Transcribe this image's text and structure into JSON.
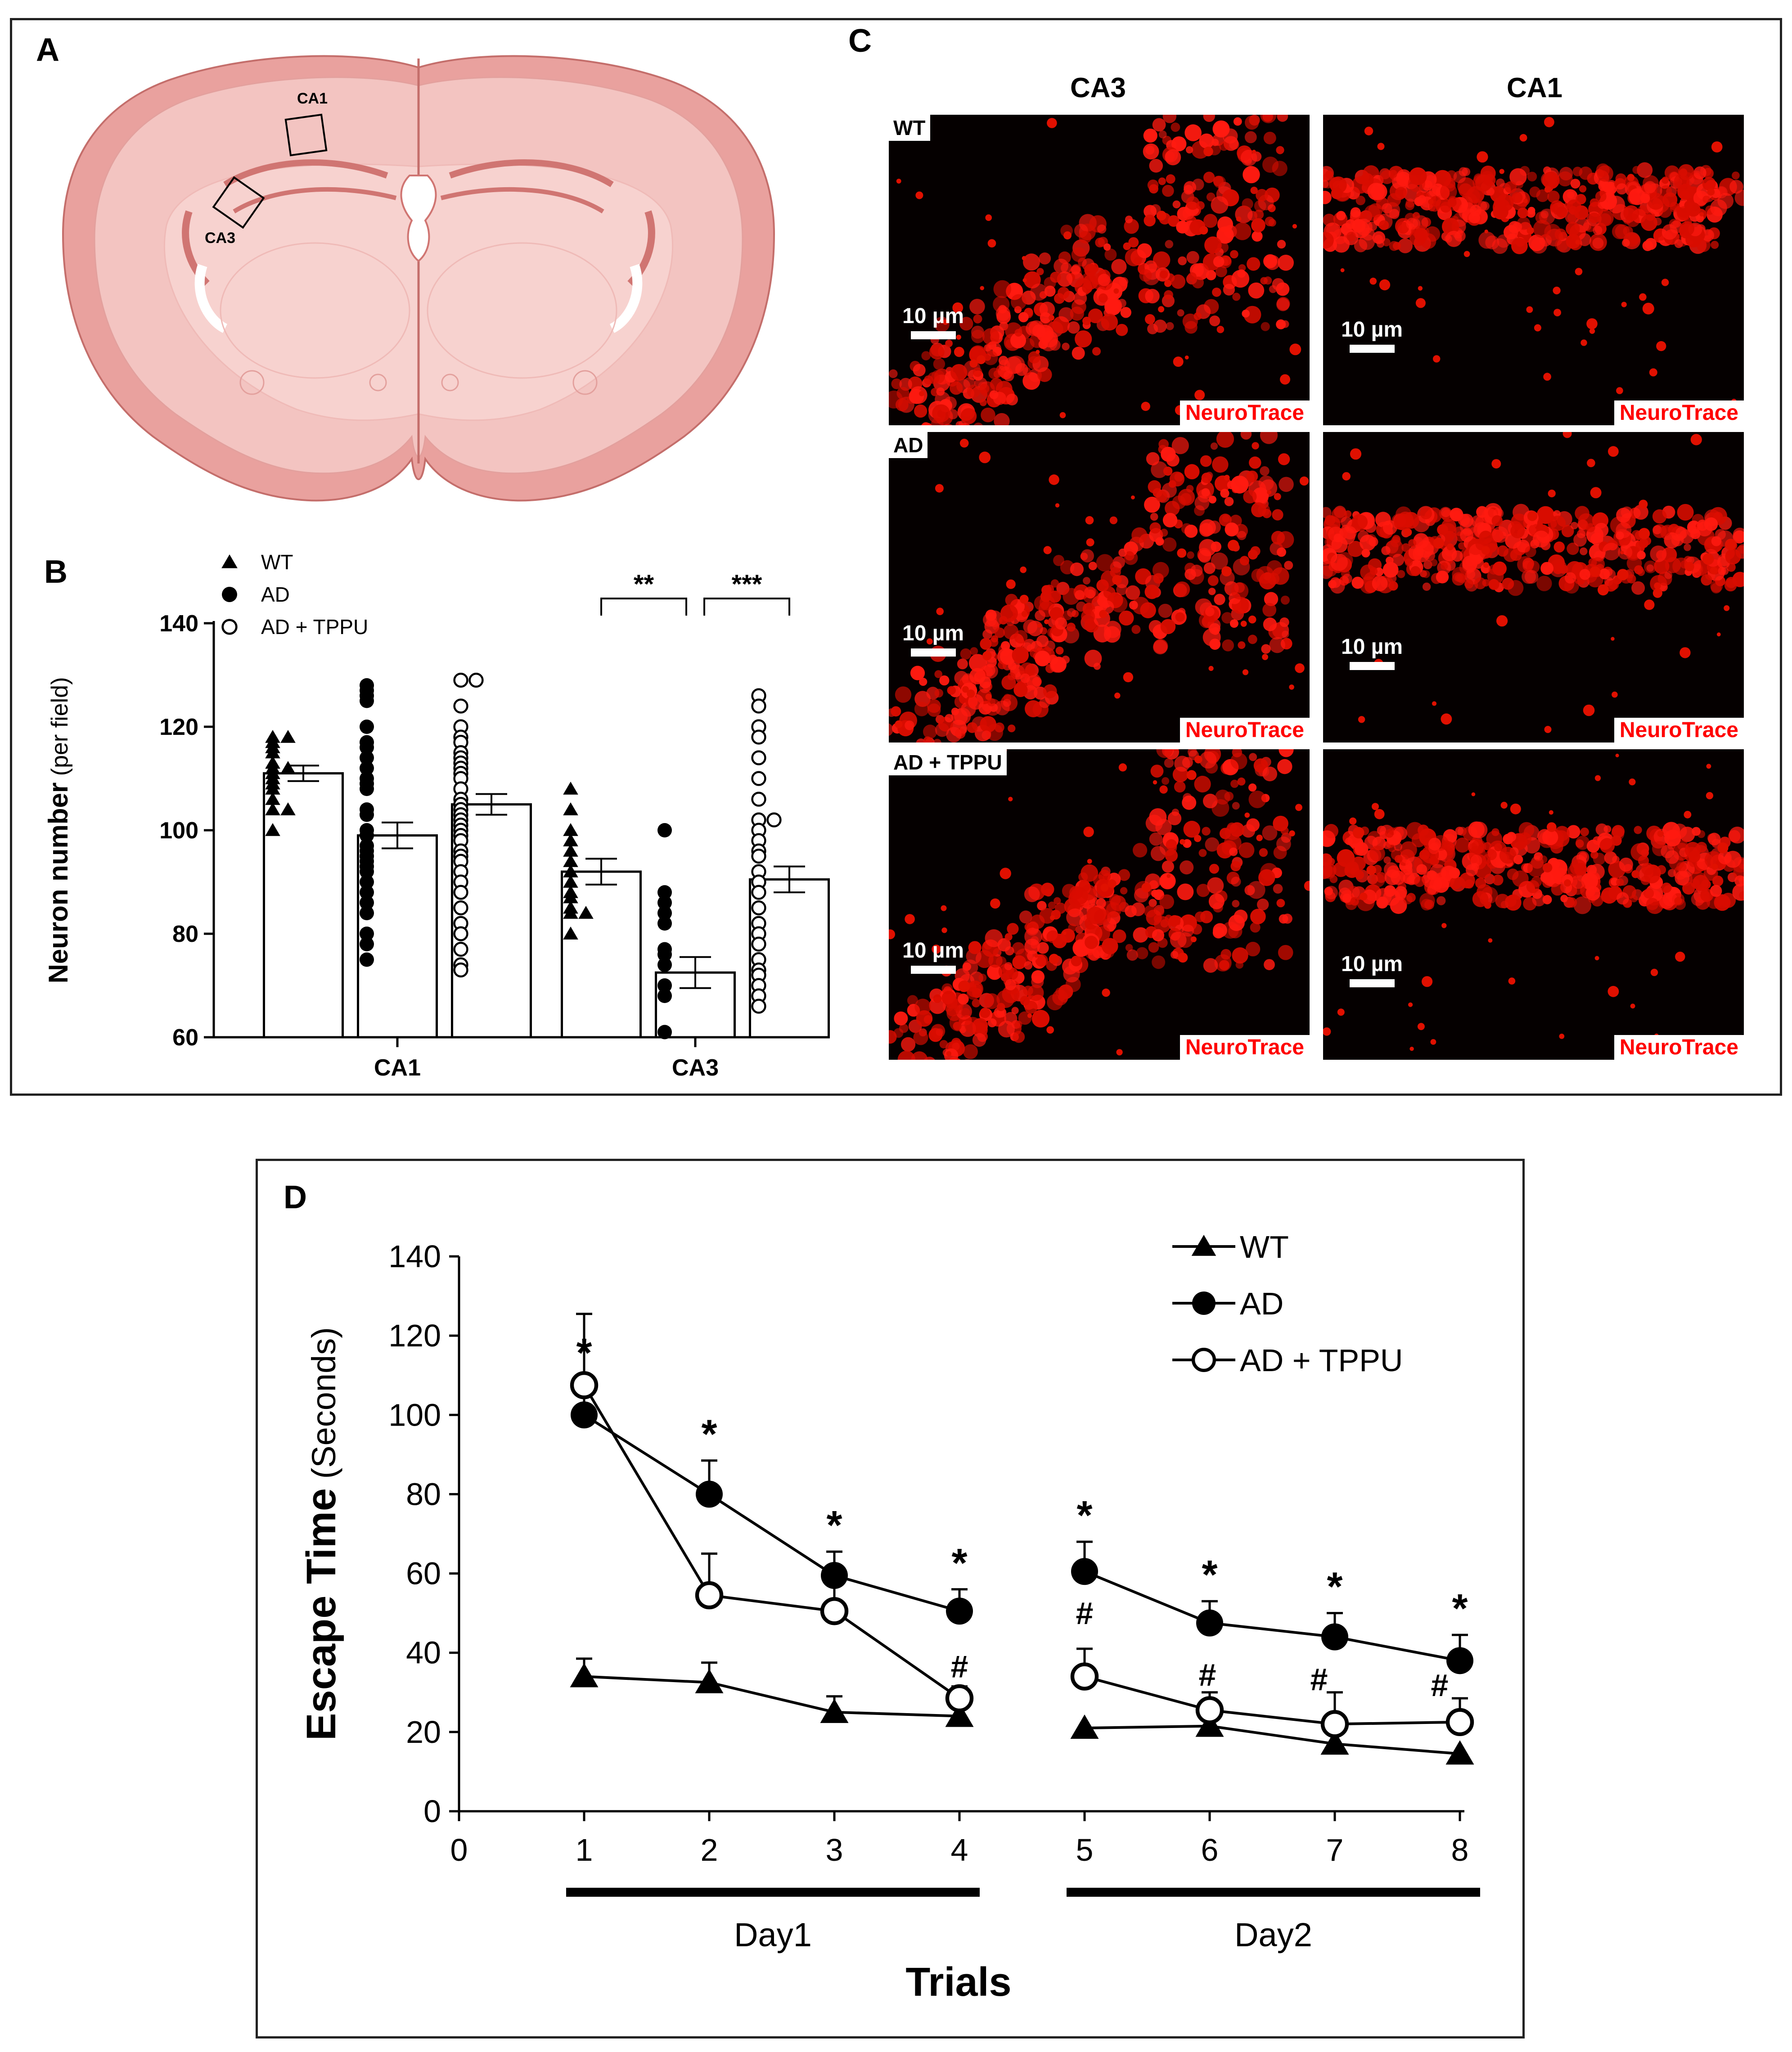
{
  "panels": {
    "a": {
      "label": "A",
      "region_ca1": "CA1",
      "region_ca3": "CA3"
    },
    "b": {
      "label": "B"
    },
    "c": {
      "label": "C",
      "col_ca3": "CA3",
      "col_ca1": "CA1",
      "rows": [
        {
          "group": "WT",
          "scale": "10 µm",
          "stain": "NeuroTrace"
        },
        {
          "group": "AD",
          "scale": "10 µm",
          "stain": "NeuroTrace"
        },
        {
          "group": "AD + TPPU",
          "scale": "10 µm",
          "stain": "NeuroTrace"
        }
      ]
    },
    "d": {
      "label": "D"
    }
  },
  "chart_data": [
    {
      "panel": "B",
      "type": "bar",
      "categories": [
        "CA1",
        "CA3"
      ],
      "ylabel_main": "Neuron number",
      "ylabel_unit": "(per field)",
      "ylim": [
        60,
        140
      ],
      "yticks": [
        60,
        80,
        100,
        120,
        140
      ],
      "legend": [
        {
          "name": "WT",
          "marker": "triangle"
        },
        {
          "name": "AD",
          "marker": "filled-circle"
        },
        {
          "name": "AD + TPPU",
          "marker": "open-circle"
        }
      ],
      "series": [
        {
          "name": "WT",
          "values": [
            111,
            92
          ],
          "sem": [
            1.5,
            2.5
          ],
          "points": [
            [
              118,
              118,
              117,
              116,
              115,
              113,
              112,
              112,
              111,
              110,
              109,
              108,
              106,
              104,
              104,
              100
            ],
            [
              108,
              104,
              100,
              98,
              96,
              94,
              92,
              90,
              88,
              87,
              85,
              84,
              84,
              80
            ]
          ]
        },
        {
          "name": "AD",
          "values": [
            99,
            72.5
          ],
          "sem": [
            2.5,
            3
          ],
          "points": [
            [
              128,
              127,
              126,
              125,
              120,
              117,
              116,
              114,
              112,
              110,
              109,
              108,
              104,
              103,
              100,
              99,
              97,
              96,
              95,
              94,
              93,
              92,
              90,
              88,
              86,
              84,
              80,
              78,
              75
            ],
            [
              100,
              88,
              86,
              84,
              82,
              77,
              76,
              74,
              70,
              68,
              61
            ]
          ]
        },
        {
          "name": "AD + TPPU",
          "values": [
            105,
            90.5
          ],
          "sem": [
            2,
            2.5
          ],
          "points": [
            [
              129,
              129,
              124,
              120,
              118,
              117,
              115,
              114,
              113,
              112,
              111,
              110,
              108,
              106,
              105,
              104,
              103,
              102,
              101,
              100,
              99,
              98,
              96,
              95,
              94,
              92,
              90,
              88,
              85,
              82,
              80,
              77,
              74,
              73
            ],
            [
              126,
              124,
              120,
              118,
              114,
              110,
              106,
              102,
              102,
              100,
              98,
              96,
              95,
              92,
              90,
              88,
              85,
              82,
              80,
              78,
              75,
              73,
              72,
              70,
              68,
              66
            ]
          ]
        }
      ],
      "significance": [
        {
          "between": "WT vs AD (CA3)",
          "label": "**"
        },
        {
          "between": "AD vs AD + TPPU (CA3)",
          "label": "***"
        }
      ]
    },
    {
      "panel": "D",
      "type": "line",
      "x": [
        1,
        2,
        3,
        4,
        5,
        6,
        7,
        8
      ],
      "xticks": [
        0,
        1,
        2,
        3,
        4,
        5,
        6,
        7,
        8
      ],
      "ylim": [
        0,
        140
      ],
      "yticks": [
        0,
        20,
        40,
        60,
        80,
        100,
        120,
        140
      ],
      "ylabel_main": "Escape Time",
      "ylabel_unit": "(Seconds)",
      "xlabel": "Trials",
      "day_groups": [
        {
          "label": "Day1",
          "from": 1,
          "to": 4
        },
        {
          "label": "Day2",
          "from": 5,
          "to": 8
        }
      ],
      "series": [
        {
          "name": "WT",
          "marker": "triangle",
          "values": [
            34,
            32.5,
            25,
            24,
            21,
            21.5,
            17,
            14.5
          ],
          "errors": [
            4.5,
            5,
            4,
            0,
            0,
            0,
            0,
            0
          ]
        },
        {
          "name": "AD",
          "marker": "filled-circle",
          "values": [
            100,
            80,
            59.5,
            50.5,
            60.5,
            47.5,
            44,
            38
          ],
          "errors": [
            9,
            8.5,
            6,
            5.5,
            7.5,
            5.5,
            6,
            6.5
          ]
        },
        {
          "name": "AD + TPPU",
          "marker": "open-circle",
          "values": [
            107.5,
            54.5,
            50.5,
            28.5,
            34,
            25.5,
            22,
            22.5
          ],
          "errors": [
            18,
            10.5,
            9,
            3,
            7,
            4.5,
            8,
            6
          ]
        }
      ],
      "ad_marks": [
        "*",
        "*",
        "*",
        "*",
        "*",
        "*",
        "*",
        "*"
      ],
      "tppu_marks": [
        "",
        "",
        "",
        "#",
        "#",
        "#",
        "#",
        "#"
      ]
    }
  ]
}
